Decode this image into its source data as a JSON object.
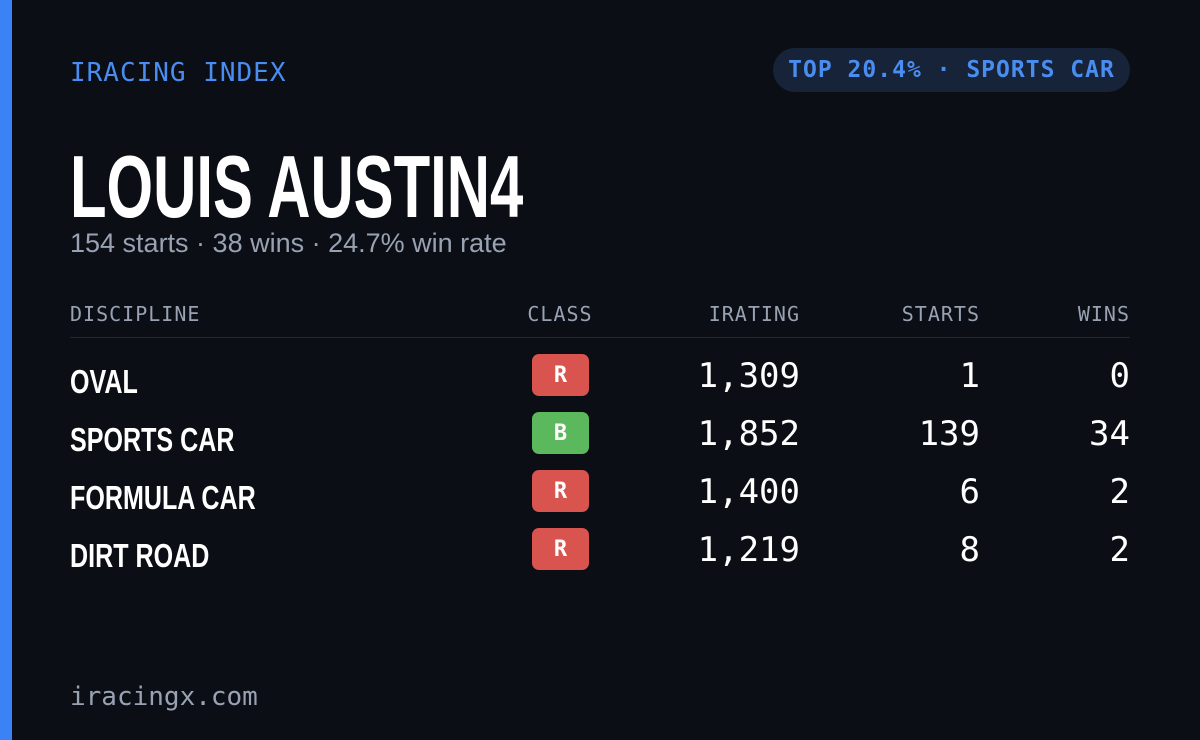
{
  "header": {
    "label": "IRACING INDEX",
    "badge": "TOP 20.4% · SPORTS CAR"
  },
  "profile": {
    "name": "LOUIS AUSTIN4",
    "summary": "154 starts · 38 wins · 24.7% win rate"
  },
  "table": {
    "columns": [
      "DISCIPLINE",
      "CLASS",
      "IRATING",
      "STARTS",
      "WINS"
    ],
    "rows": [
      [
        "OVAL",
        "R",
        "1,309",
        "1",
        "0"
      ],
      [
        "SPORTS CAR",
        "B",
        "1,852",
        "139",
        "34"
      ],
      [
        "FORMULA CAR",
        "R",
        "1,400",
        "6",
        "2"
      ],
      [
        "DIRT ROAD",
        "R",
        "1,219",
        "8",
        "2"
      ]
    ],
    "class_colors": [
      "#d9534f",
      "#5cb85c",
      "#d9534f",
      "#d9534f"
    ]
  },
  "footer": {
    "site": "iracingx.com"
  }
}
